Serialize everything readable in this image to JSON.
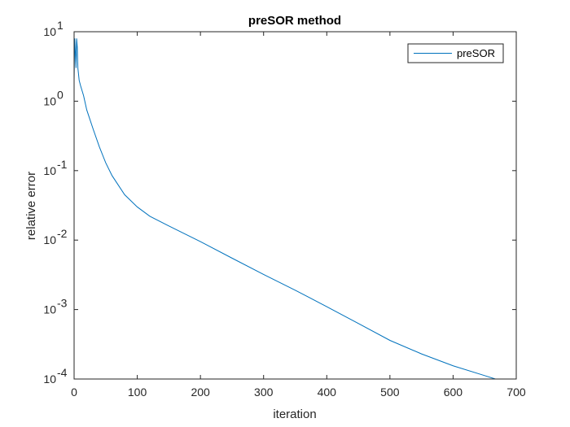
{
  "chart_data": {
    "type": "line",
    "title": "preSOR method",
    "xlabel": "iteration",
    "ylabel": "relative error",
    "xlim": [
      0,
      700
    ],
    "ylim": [
      0.0001,
      10
    ],
    "yscale": "log",
    "grid": false,
    "legend_position": "top-right",
    "x_ticks": [
      0,
      100,
      200,
      300,
      400,
      500,
      600,
      700
    ],
    "x_tick_labels": [
      "0",
      "100",
      "200",
      "300",
      "400",
      "500",
      "600",
      "700"
    ],
    "y_ticks": [
      0.0001,
      0.001,
      0.01,
      0.1,
      1,
      10
    ],
    "y_tick_labels": [
      {
        "base": "10",
        "exp": "-4"
      },
      {
        "base": "10",
        "exp": "-3"
      },
      {
        "base": "10",
        "exp": "-2"
      },
      {
        "base": "10",
        "exp": "-1"
      },
      {
        "base": "10",
        "exp": "0"
      },
      {
        "base": "10",
        "exp": "1"
      }
    ],
    "series": [
      {
        "name": "preSOR",
        "color": "#0072bd",
        "x": [
          0,
          1,
          2,
          3,
          4,
          5,
          6,
          8,
          10,
          15,
          20,
          30,
          40,
          50,
          60,
          80,
          100,
          120,
          150,
          200,
          250,
          300,
          350,
          400,
          450,
          500,
          550,
          600,
          650,
          667
        ],
        "y": [
          2.0,
          8.0,
          5.0,
          3.0,
          8.0,
          6.0,
          3.0,
          2.0,
          1.7,
          1.2,
          0.75,
          0.4,
          0.22,
          0.13,
          0.085,
          0.045,
          0.03,
          0.022,
          0.016,
          0.0095,
          0.0055,
          0.0032,
          0.0019,
          0.0011,
          0.00063,
          0.00036,
          0.00023,
          0.000155,
          0.000112,
          0.0001
        ]
      }
    ]
  }
}
